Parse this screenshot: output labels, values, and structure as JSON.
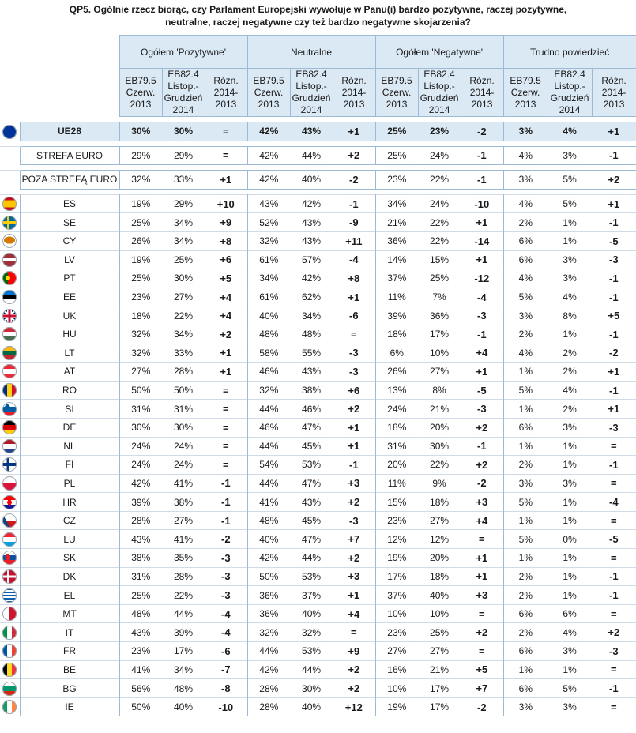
{
  "title": "QP5. Ogólnie rzecz biorąc, czy Parlament Europejski wywołuje w Panu(i) bardzo pozytywne, raczej pozytywne,\nneutralne, raczej negatywne czy też bardzo negatywne skojarzenia?",
  "title_line1": "QP5. Ogólnie rzecz biorąc, czy Parlament Europejski wywołuje w Panu(i) bardzo pozytywne, raczej pozytywne,",
  "title_line2": "neutralne, raczej negatywne czy też bardzo negatywne skojarzenia?",
  "groups": [
    "Ogółem 'Pozytywne'",
    "Neutralne",
    "Ogółem 'Negatywne'",
    "Trudno powiedzieć"
  ],
  "subheaders": [
    [
      "EB79.5",
      "Czerw.",
      "2013"
    ],
    [
      "EB82.4",
      "Listop.-",
      "Grudzień",
      "2014"
    ],
    [
      "Różn.",
      "2014-",
      "2013"
    ]
  ],
  "rows": [
    {
      "name": "UE28",
      "flag": "eu",
      "v": [
        "30%",
        "30%",
        "=",
        "42%",
        "43%",
        "+1",
        "25%",
        "23%",
        "-2",
        "3%",
        "4%",
        "+1"
      ],
      "type": "eu"
    },
    {
      "name": "STREFA EURO",
      "flag": "",
      "v": [
        "29%",
        "29%",
        "=",
        "42%",
        "44%",
        "+2",
        "25%",
        "24%",
        "-1",
        "4%",
        "3%",
        "-1"
      ],
      "type": "block"
    },
    {
      "name": "POZA STREFĄ EURO",
      "flag": "",
      "v": [
        "32%",
        "33%",
        "+1",
        "42%",
        "40%",
        "-2",
        "23%",
        "22%",
        "-1",
        "3%",
        "5%",
        "+2"
      ],
      "type": "block"
    },
    {
      "name": "ES",
      "flag": "es",
      "v": [
        "19%",
        "29%",
        "+10",
        "43%",
        "42%",
        "-1",
        "34%",
        "24%",
        "-10",
        "4%",
        "5%",
        "+1"
      ]
    },
    {
      "name": "SE",
      "flag": "se",
      "v": [
        "25%",
        "34%",
        "+9",
        "52%",
        "43%",
        "-9",
        "21%",
        "22%",
        "+1",
        "2%",
        "1%",
        "-1"
      ]
    },
    {
      "name": "CY",
      "flag": "cy",
      "v": [
        "26%",
        "34%",
        "+8",
        "32%",
        "43%",
        "+11",
        "36%",
        "22%",
        "-14",
        "6%",
        "1%",
        "-5"
      ]
    },
    {
      "name": "LV",
      "flag": "lv",
      "v": [
        "19%",
        "25%",
        "+6",
        "61%",
        "57%",
        "-4",
        "14%",
        "15%",
        "+1",
        "6%",
        "3%",
        "-3"
      ]
    },
    {
      "name": "PT",
      "flag": "pt",
      "v": [
        "25%",
        "30%",
        "+5",
        "34%",
        "42%",
        "+8",
        "37%",
        "25%",
        "-12",
        "4%",
        "3%",
        "-1"
      ]
    },
    {
      "name": "EE",
      "flag": "ee",
      "v": [
        "23%",
        "27%",
        "+4",
        "61%",
        "62%",
        "+1",
        "11%",
        "7%",
        "-4",
        "5%",
        "4%",
        "-1"
      ]
    },
    {
      "name": "UK",
      "flag": "uk",
      "v": [
        "18%",
        "22%",
        "+4",
        "40%",
        "34%",
        "-6",
        "39%",
        "36%",
        "-3",
        "3%",
        "8%",
        "+5"
      ]
    },
    {
      "name": "HU",
      "flag": "hu",
      "v": [
        "32%",
        "34%",
        "+2",
        "48%",
        "48%",
        "=",
        "18%",
        "17%",
        "-1",
        "2%",
        "1%",
        "-1"
      ]
    },
    {
      "name": "LT",
      "flag": "lt",
      "v": [
        "32%",
        "33%",
        "+1",
        "58%",
        "55%",
        "-3",
        "6%",
        "10%",
        "+4",
        "4%",
        "2%",
        "-2"
      ]
    },
    {
      "name": "AT",
      "flag": "at",
      "v": [
        "27%",
        "28%",
        "+1",
        "46%",
        "43%",
        "-3",
        "26%",
        "27%",
        "+1",
        "1%",
        "2%",
        "+1"
      ]
    },
    {
      "name": "RO",
      "flag": "ro",
      "v": [
        "50%",
        "50%",
        "=",
        "32%",
        "38%",
        "+6",
        "13%",
        "8%",
        "-5",
        "5%",
        "4%",
        "-1"
      ]
    },
    {
      "name": "SI",
      "flag": "si",
      "v": [
        "31%",
        "31%",
        "=",
        "44%",
        "46%",
        "+2",
        "24%",
        "21%",
        "-3",
        "1%",
        "2%",
        "+1"
      ]
    },
    {
      "name": "DE",
      "flag": "de",
      "v": [
        "30%",
        "30%",
        "=",
        "46%",
        "47%",
        "+1",
        "18%",
        "20%",
        "+2",
        "6%",
        "3%",
        "-3"
      ]
    },
    {
      "name": "NL",
      "flag": "nl",
      "v": [
        "24%",
        "24%",
        "=",
        "44%",
        "45%",
        "+1",
        "31%",
        "30%",
        "-1",
        "1%",
        "1%",
        "="
      ]
    },
    {
      "name": "FI",
      "flag": "fi",
      "v": [
        "24%",
        "24%",
        "=",
        "54%",
        "53%",
        "-1",
        "20%",
        "22%",
        "+2",
        "2%",
        "1%",
        "-1"
      ]
    },
    {
      "name": "PL",
      "flag": "pl",
      "v": [
        "42%",
        "41%",
        "-1",
        "44%",
        "47%",
        "+3",
        "11%",
        "9%",
        "-2",
        "3%",
        "3%",
        "="
      ]
    },
    {
      "name": "HR",
      "flag": "hr",
      "v": [
        "39%",
        "38%",
        "-1",
        "41%",
        "43%",
        "+2",
        "15%",
        "18%",
        "+3",
        "5%",
        "1%",
        "-4"
      ]
    },
    {
      "name": "CZ",
      "flag": "cz",
      "v": [
        "28%",
        "27%",
        "-1",
        "48%",
        "45%",
        "-3",
        "23%",
        "27%",
        "+4",
        "1%",
        "1%",
        "="
      ]
    },
    {
      "name": "LU",
      "flag": "lu",
      "v": [
        "43%",
        "41%",
        "-2",
        "40%",
        "47%",
        "+7",
        "12%",
        "12%",
        "=",
        "5%",
        "0%",
        "-5"
      ]
    },
    {
      "name": "SK",
      "flag": "sk",
      "v": [
        "38%",
        "35%",
        "-3",
        "42%",
        "44%",
        "+2",
        "19%",
        "20%",
        "+1",
        "1%",
        "1%",
        "="
      ]
    },
    {
      "name": "DK",
      "flag": "dk",
      "v": [
        "31%",
        "28%",
        "-3",
        "50%",
        "53%",
        "+3",
        "17%",
        "18%",
        "+1",
        "2%",
        "1%",
        "-1"
      ]
    },
    {
      "name": "EL",
      "flag": "el",
      "v": [
        "25%",
        "22%",
        "-3",
        "36%",
        "37%",
        "+1",
        "37%",
        "40%",
        "+3",
        "2%",
        "1%",
        "-1"
      ]
    },
    {
      "name": "MT",
      "flag": "mt",
      "v": [
        "48%",
        "44%",
        "-4",
        "36%",
        "40%",
        "+4",
        "10%",
        "10%",
        "=",
        "6%",
        "6%",
        "="
      ]
    },
    {
      "name": "IT",
      "flag": "it",
      "v": [
        "43%",
        "39%",
        "-4",
        "32%",
        "32%",
        "=",
        "23%",
        "25%",
        "+2",
        "2%",
        "4%",
        "+2"
      ]
    },
    {
      "name": "FR",
      "flag": "fr",
      "v": [
        "23%",
        "17%",
        "-6",
        "44%",
        "53%",
        "+9",
        "27%",
        "27%",
        "=",
        "6%",
        "3%",
        "-3"
      ]
    },
    {
      "name": "BE",
      "flag": "be",
      "v": [
        "41%",
        "34%",
        "-7",
        "42%",
        "44%",
        "+2",
        "16%",
        "21%",
        "+5",
        "1%",
        "1%",
        "="
      ]
    },
    {
      "name": "BG",
      "flag": "bg",
      "v": [
        "56%",
        "48%",
        "-8",
        "28%",
        "30%",
        "+2",
        "10%",
        "17%",
        "+7",
        "6%",
        "5%",
        "-1"
      ]
    },
    {
      "name": "IE",
      "flag": "ie",
      "v": [
        "50%",
        "40%",
        "-10",
        "28%",
        "40%",
        "+12",
        "19%",
        "17%",
        "-2",
        "3%",
        "3%",
        "="
      ]
    }
  ]
}
